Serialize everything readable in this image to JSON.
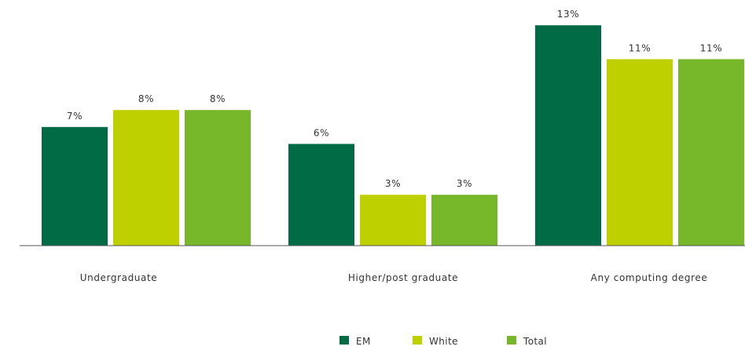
{
  "chart_data": {
    "type": "bar",
    "categories": [
      "Undergraduate",
      "Higher/post graduate",
      "Any computing degree"
    ],
    "series": [
      {
        "name": "EM",
        "color": "#006b45",
        "values": [
          7,
          6,
          13
        ],
        "labels": [
          "7%",
          "6%",
          "13%"
        ]
      },
      {
        "name": "White",
        "color": "#bfd000",
        "values": [
          8,
          3,
          11
        ],
        "labels": [
          "8%",
          "3%",
          "11%"
        ]
      },
      {
        "name": "Total",
        "color": "#76b82a",
        "values": [
          8,
          3,
          11
        ],
        "labels": [
          "8%",
          "3%",
          "11%"
        ]
      }
    ],
    "title": "",
    "xlabel": "",
    "ylabel": "",
    "ylim": [
      0,
      13
    ],
    "grid": false,
    "legend_position": "bottom-center"
  }
}
